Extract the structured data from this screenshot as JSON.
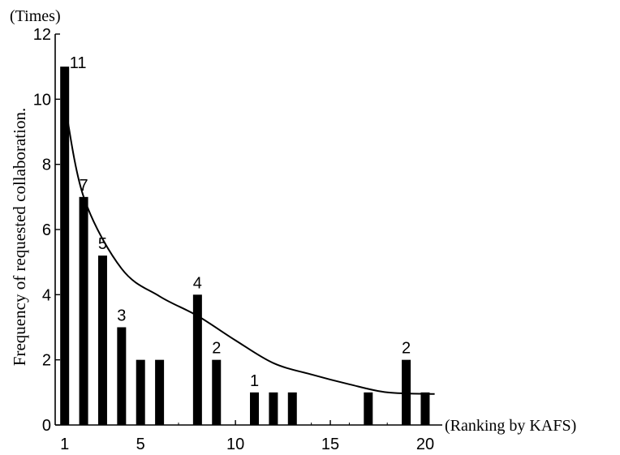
{
  "chart_data": {
    "type": "bar",
    "y_unit_label": "(Times)",
    "ylabel": "Frequency of requested collaboration.",
    "xlabel": "(Ranking by KAFS)",
    "x": [
      1,
      2,
      3,
      4,
      5,
      6,
      7,
      8,
      9,
      10,
      11,
      12,
      13,
      14,
      15,
      16,
      17,
      18,
      19,
      20
    ],
    "values": [
      11,
      7,
      5.2,
      3,
      2,
      2,
      0,
      4,
      2,
      0,
      1,
      1,
      1,
      0,
      0,
      0,
      1,
      0,
      2,
      1
    ],
    "data_labels": [
      {
        "x": 1,
        "text": "11"
      },
      {
        "x": 2,
        "text": "7"
      },
      {
        "x": 3,
        "text": "5"
      },
      {
        "x": 4,
        "text": "3"
      },
      {
        "x": 8,
        "text": "4"
      },
      {
        "x": 9,
        "text": "2"
      },
      {
        "x": 11,
        "text": "1"
      },
      {
        "x": 19,
        "text": "2"
      }
    ],
    "y_ticks": [
      {
        "value": 0,
        "label": "0"
      },
      {
        "value": 2,
        "label": "2"
      },
      {
        "value": 4,
        "label": "4"
      },
      {
        "value": 6,
        "label": "6"
      },
      {
        "value": 8,
        "label": "8"
      },
      {
        "value": 10,
        "label": "10"
      },
      {
        "value": 12,
        "label": "12"
      }
    ],
    "x_ticks": [
      {
        "value": 1,
        "label": "1"
      },
      {
        "value": 5,
        "label": "5"
      },
      {
        "value": 10,
        "label": "10"
      },
      {
        "value": 15,
        "label": "15"
      },
      {
        "value": 20,
        "label": "20"
      }
    ],
    "xlim": [
      0.5,
      20.9
    ],
    "ylim": [
      0,
      12
    ],
    "trend_curve": {
      "type": "power",
      "points": [
        [
          1,
          9.9
        ],
        [
          2,
          7.0
        ],
        [
          4,
          4.8
        ],
        [
          6,
          3.95
        ],
        [
          8,
          3.35
        ],
        [
          10,
          2.6
        ],
        [
          12,
          1.9
        ],
        [
          14,
          1.55
        ],
        [
          16,
          1.25
        ],
        [
          18,
          1.0
        ],
        [
          20.5,
          0.95
        ]
      ]
    },
    "grid": false,
    "legend": "none",
    "colors": {
      "bar": "#000000",
      "axis": "#000000",
      "background": "#ffffff"
    }
  }
}
